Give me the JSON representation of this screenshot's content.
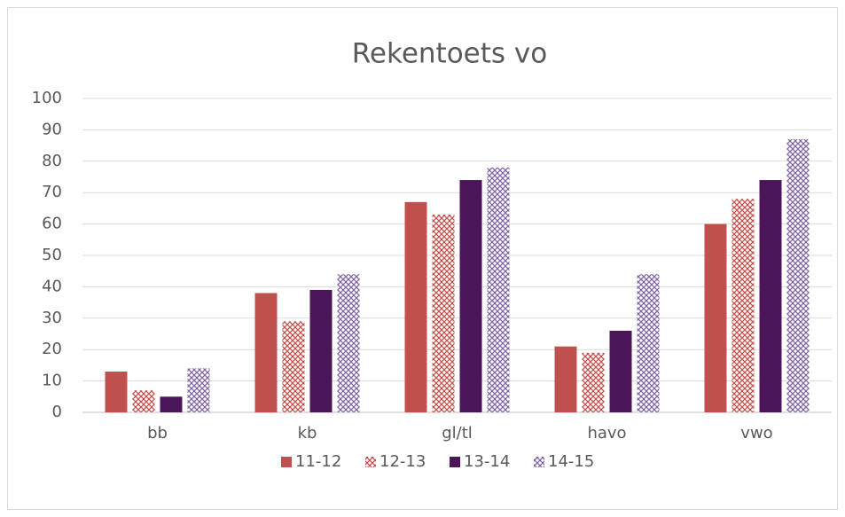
{
  "chart_data": {
    "type": "bar",
    "title": "Rekentoets vo",
    "categories": [
      "bb",
      "kb",
      "gl/tl",
      "havo",
      "vwo"
    ],
    "series": [
      {
        "name": "11-12",
        "color": "#c0504d",
        "pattern": false,
        "values": [
          13,
          38,
          67,
          21,
          60
        ]
      },
      {
        "name": "12-13",
        "color": "#c0504d",
        "pattern": true,
        "values": [
          7,
          29,
          63,
          19,
          68
        ]
      },
      {
        "name": "13-14",
        "color": "#4b1659",
        "pattern": false,
        "values": [
          5,
          39,
          74,
          26,
          74
        ]
      },
      {
        "name": "14-15",
        "color": "#8064a2",
        "pattern": true,
        "values": [
          14,
          44,
          78,
          44,
          87
        ]
      }
    ],
    "ylim": [
      0,
      100
    ],
    "yticks": [
      0,
      10,
      20,
      30,
      40,
      50,
      60,
      70,
      80,
      90,
      100
    ],
    "grid": true,
    "legend": "bottom"
  }
}
